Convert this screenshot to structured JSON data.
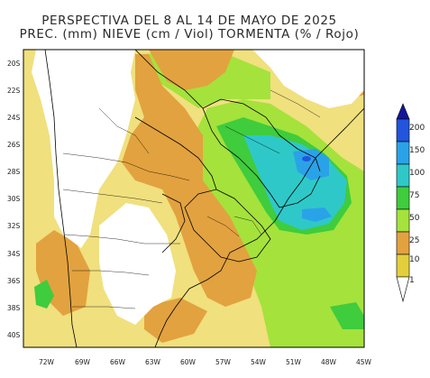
{
  "title_line1": "PERSPECTIVA DEL 8 AL 14 DE MAYO DE 2025",
  "title_line2": "PREC. (mm) NIEVE (cm / Viol) TORMENTA (% / Rojo)",
  "lat_ticks": [
    "20S",
    "22S",
    "24S",
    "26S",
    "28S",
    "30S",
    "32S",
    "34S",
    "36S",
    "38S",
    "40S"
  ],
  "lon_ticks": [
    "72W",
    "69W",
    "66W",
    "63W",
    "60W",
    "57W",
    "54W",
    "51W",
    "48W",
    "45W"
  ],
  "legend": {
    "levels": [
      "1",
      "10",
      "25",
      "50",
      "75",
      "100",
      "150",
      "200"
    ],
    "colors": {
      "lt1": "#ffffff",
      "c1_10": "#e3cf3c",
      "c10_25": "#e2a23f",
      "c25_50": "#a5e23c",
      "c50_75": "#3fcc3d",
      "c75_100": "#2fc8c8",
      "c100_150": "#2aa2e8",
      "c150_200": "#2255dd",
      "gt200": "#14159e"
    }
  },
  "fill_colors": {
    "low": "#f0e07e",
    "medium": "#e2a23f",
    "green_light": "#a5e23c",
    "green": "#3fcc3d",
    "cyan": "#2fc8c8",
    "blue": "#2aa2e8",
    "dark_blue": "#2255dd",
    "none": "#ffffff"
  }
}
